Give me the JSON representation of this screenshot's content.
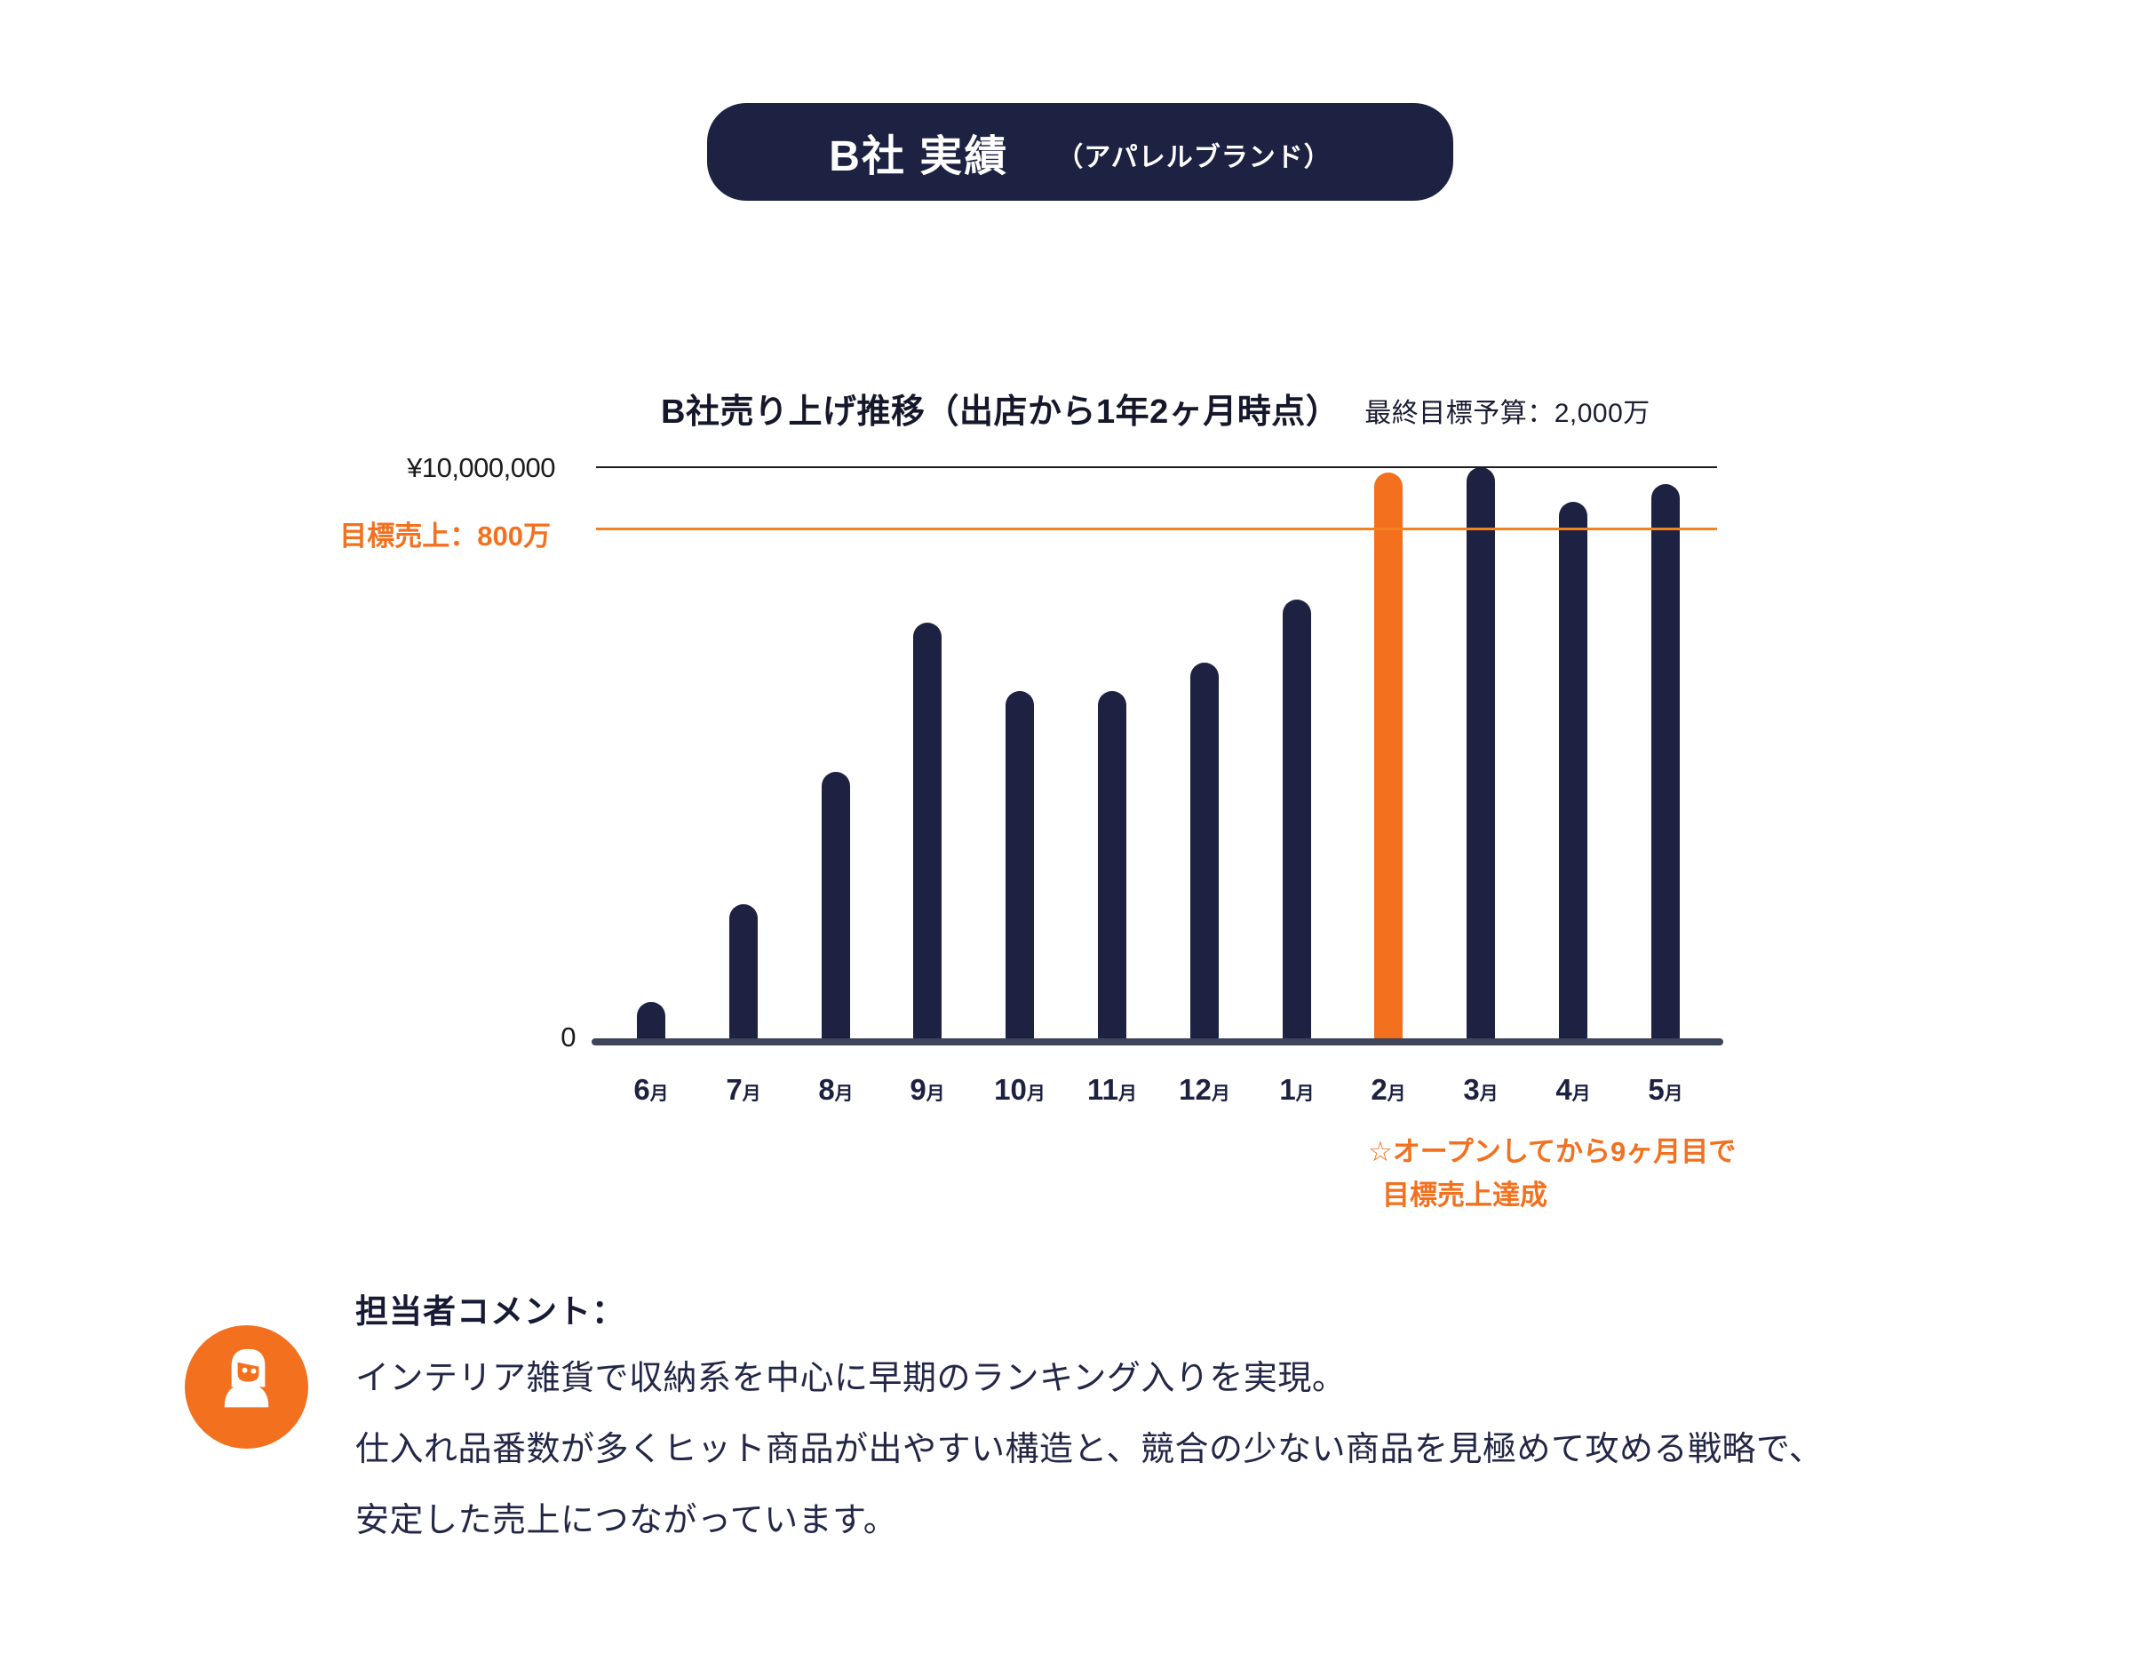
{
  "badge": {
    "title": "B社 実績",
    "subtitle": "（アパレルブランド）"
  },
  "chart": {
    "title": "B社売り上げ推移（出店から1年2ヶ月時点）",
    "subtitle": "最終目標予算：2,000万",
    "y_max_label": "¥10,000,000",
    "target_label": "目標売上：800万",
    "zero_label": "0",
    "annotation": {
      "line1": "☆オープンしてから9ヶ月目で",
      "line2": "目標売上達成"
    }
  },
  "chart_data": {
    "type": "bar",
    "title": "B社売り上げ推移（出店から1年2ヶ月時点）",
    "subtitle": "最終目標予算：2,000万",
    "categories": [
      "6月",
      "7月",
      "8月",
      "9月",
      "10月",
      "11月",
      "12月",
      "1月",
      "2月",
      "3月",
      "4月",
      "5月"
    ],
    "values": [
      700000,
      2400000,
      4700000,
      7300000,
      6100000,
      6100000,
      6600000,
      7700000,
      9900000,
      10000000,
      9400000,
      9700000
    ],
    "unit": "yen",
    "ylim": [
      0,
      10000000
    ],
    "y_gridline": {
      "value": 10000000,
      "label": "¥10,000,000"
    },
    "target_line": {
      "label": "目標売上：800万",
      "value": 8000000,
      "drawn_fraction": 0.893
    },
    "highlight": {
      "index": 8,
      "category": "2月"
    },
    "grid": false,
    "legend": false,
    "annotation": [
      "☆オープンしてから9ヶ月目で",
      "目標売上達成"
    ]
  },
  "comment": {
    "heading": "担当者コメント：",
    "lines": [
      "インテリア雑貨で収納系を中心に早期のランキング入りを実現。",
      "仕入れ品番数が多くヒット商品が出やすい構造と、競合の少ない商品を見極めて攻める戦略で、",
      "安定した売上につながっています。"
    ]
  },
  "colors": {
    "navy": "#1d2142",
    "orange": "#f3701e",
    "target_line_orange": "#f5821f",
    "axis_slate": "#3e4459",
    "gridline_black": "#1c1c1c",
    "background": "#ffffff"
  }
}
